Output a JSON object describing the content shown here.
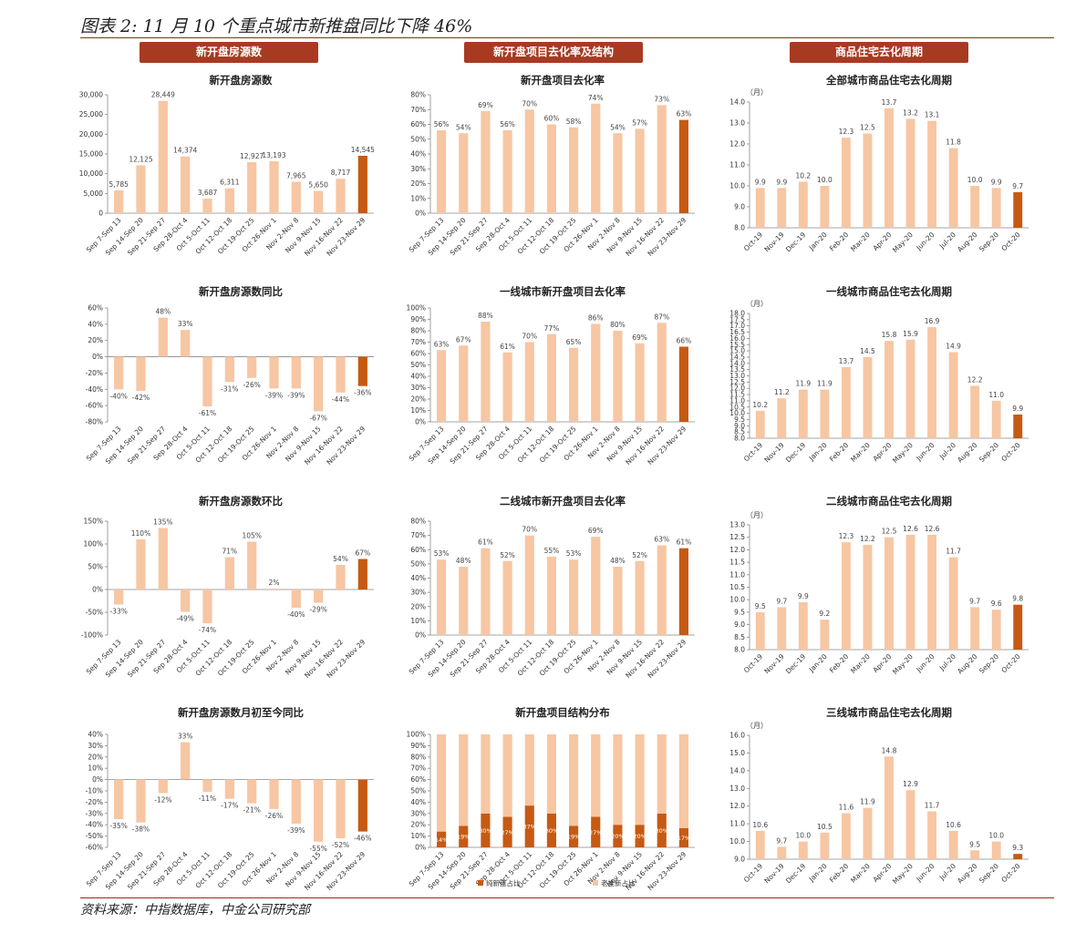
{
  "page": {
    "title": "图表 2: 11 月 10 个重点城市新推盘同比下降 46%",
    "footer": "资料来源：中指数据库，中金公司研究部",
    "column_headers": [
      "新开盘房源数",
      "新开盘项目去化率及结构",
      "商品住宅去化周期"
    ]
  },
  "colors": {
    "light": "#f7c6a3",
    "dark": "#c65a12",
    "header": "#a83a22",
    "axis": "#999999"
  },
  "weekCats": [
    "Sep 7-Sep 13",
    "Sep 14-Sep 20",
    "Sep 21-Sep 27",
    "Sep 28-Oct 4",
    "Oct 5-Oct 11",
    "Oct 12-Oct 18",
    "Oct 19-Oct 25",
    "Oct 26-Nov 1",
    "Nov 2-Nov 8",
    "Nov 9-Nov 15",
    "Nov 16-Nov 22",
    "Nov 23-Nov 29"
  ],
  "monthCats": [
    "Oct-19",
    "Nov-19",
    "Dec-19",
    "Jan-20",
    "Feb-20",
    "Mar-20",
    "Apr-20",
    "May-20",
    "Jun-20",
    "Jul-20",
    "Aug-20",
    "Sep-20",
    "Oct-20"
  ],
  "chart_data": [
    {
      "id": "c0",
      "type": "bar",
      "title": "新开盘房源数",
      "catKey": "weekCats",
      "values": [
        5785,
        12125,
        28449,
        14374,
        3687,
        6311,
        12927,
        13193,
        7965,
        5650,
        8717,
        14545
      ],
      "labels": [
        "5,785",
        "12,125",
        "28,449",
        "14,374",
        "3,687",
        "6,311",
        "12,927",
        "13,193",
        "7,965",
        "5,650",
        "8,717",
        "14,545"
      ],
      "ylim": [
        0,
        30000
      ],
      "ticks": [
        0,
        5000,
        10000,
        15000,
        20000,
        25000,
        30000
      ],
      "tickLabels": [
        "0",
        "5,000",
        "10,000",
        "15,000",
        "20,000",
        "25,000",
        "30,000"
      ]
    },
    {
      "id": "c1",
      "type": "bar",
      "title": "新开盘项目去化率",
      "catKey": "weekCats",
      "values": [
        56,
        54,
        69,
        56,
        70,
        60,
        58,
        74,
        54,
        57,
        73,
        63
      ],
      "labels": [
        "56%",
        "54%",
        "69%",
        "56%",
        "70%",
        "60%",
        "58%",
        "74%",
        "54%",
        "57%",
        "73%",
        "63%"
      ],
      "ylim": [
        0,
        80
      ],
      "ticks": [
        0,
        10,
        20,
        30,
        40,
        50,
        60,
        70,
        80
      ],
      "tickLabels": [
        "0%",
        "10%",
        "20%",
        "30%",
        "40%",
        "50%",
        "60%",
        "70%",
        "80%"
      ]
    },
    {
      "id": "c2",
      "type": "bar",
      "title": "全部城市商品住宅去化周期",
      "catKey": "monthCats",
      "unit": "（月）",
      "values": [
        9.9,
        9.9,
        10.2,
        10.0,
        12.3,
        12.5,
        13.7,
        13.2,
        13.1,
        11.8,
        10.0,
        9.9,
        9.7
      ],
      "labels": [
        "9.9",
        "9.9",
        "10.2",
        "10.0",
        "12.3",
        "12.5",
        "13.7",
        "13.2",
        "13.1",
        "11.8",
        "10.0",
        "9.9",
        "9.7"
      ],
      "ylim": [
        8,
        14
      ],
      "ticks": [
        8,
        9,
        10,
        11,
        12,
        13,
        14
      ],
      "tickLabels": [
        "8.0",
        "9.0",
        "10.0",
        "11.0",
        "12.0",
        "13.0",
        "14.0"
      ]
    },
    {
      "id": "c3",
      "type": "bar",
      "title": "新开盘房源数同比",
      "catKey": "weekCats",
      "values": [
        -40,
        -42,
        48,
        33,
        -61,
        -31,
        -26,
        -39,
        -39,
        -67,
        -44,
        -36
      ],
      "labels": [
        "-40%",
        "-42%",
        "48%",
        "33%",
        "-61%",
        "-31%",
        "-26%",
        "-39%",
        "-39%",
        "-67%",
        "-44%",
        "-36%"
      ],
      "ylim": [
        -80,
        60
      ],
      "ticks": [
        -80,
        -60,
        -40,
        -20,
        0,
        20,
        40,
        60
      ],
      "tickLabels": [
        "-80%",
        "-60%",
        "-40%",
        "-20%",
        "0%",
        "20%",
        "40%",
        "60%"
      ]
    },
    {
      "id": "c4",
      "type": "bar",
      "title": "一线城市新开盘项目去化率",
      "catKey": "weekCats",
      "values": [
        63,
        67,
        88,
        61,
        70,
        77,
        65,
        86,
        80,
        69,
        87,
        66
      ],
      "labels": [
        "63%",
        "67%",
        "88%",
        "61%",
        "70%",
        "77%",
        "65%",
        "86%",
        "80%",
        "69%",
        "87%",
        "66%"
      ],
      "ylim": [
        0,
        100
      ],
      "ticks": [
        0,
        10,
        20,
        30,
        40,
        50,
        60,
        70,
        80,
        90,
        100
      ],
      "tickLabels": [
        "0%",
        "10%",
        "20%",
        "30%",
        "40%",
        "50%",
        "60%",
        "70%",
        "80%",
        "90%",
        "100%"
      ]
    },
    {
      "id": "c5",
      "type": "bar",
      "title": "一线城市商品住宅去化周期",
      "catKey": "monthCats",
      "unit": "（月）",
      "values": [
        10.2,
        11.2,
        11.9,
        11.9,
        13.7,
        14.5,
        15.8,
        15.9,
        16.9,
        14.9,
        12.2,
        11.0,
        9.9
      ],
      "labels": [
        "10.2",
        "11.2",
        "11.9",
        "11.9",
        "13.7",
        "14.5",
        "15.8",
        "15.9",
        "16.9",
        "14.9",
        "12.2",
        "11.0",
        "9.9"
      ],
      "ylim": [
        8,
        18
      ],
      "ticks": [
        8,
        8.5,
        9,
        9.5,
        10,
        10.5,
        11,
        11.5,
        12,
        12.5,
        13,
        13.5,
        14,
        14.5,
        15,
        15.5,
        16,
        16.5,
        17,
        17.5,
        18
      ],
      "tickLabels": [
        "8.0",
        "",
        "9.0",
        "",
        "10.0",
        "",
        "11.0",
        "",
        "12.0",
        "",
        "13.0",
        "",
        "14.0",
        "",
        "15.0",
        "",
        "16.0",
        "",
        "17.0",
        "",
        "18.0"
      ],
      "tickLabelsAll": [
        "8.0",
        "9.0",
        "10.0",
        "11.0",
        "12.0",
        "13.0",
        "14.0",
        "15.0",
        "16.0",
        "17.0",
        "18.0"
      ]
    },
    {
      "id": "c6",
      "type": "bar",
      "title": "新开盘房源数环比",
      "catKey": "weekCats",
      "values": [
        -33,
        110,
        135,
        -49,
        -74,
        71,
        105,
        2,
        -40,
        -29,
        54,
        67
      ],
      "labels": [
        "-33%",
        "110%",
        "135%",
        "-49%",
        "-74%",
        "71%",
        "105%",
        "2%",
        "-40%",
        "-29%",
        "54%",
        "67%"
      ],
      "ylim": [
        -100,
        150
      ],
      "ticks": [
        -100,
        -50,
        0,
        50,
        100,
        150
      ],
      "tickLabels": [
        "-100%",
        "-50%",
        "0%",
        "50%",
        "100%",
        "150%"
      ]
    },
    {
      "id": "c7",
      "type": "bar",
      "title": "二线城市新开盘项目去化率",
      "catKey": "weekCats",
      "values": [
        53,
        48,
        61,
        52,
        70,
        55,
        53,
        69,
        48,
        52,
        63,
        61
      ],
      "labels": [
        "53%",
        "48%",
        "61%",
        "52%",
        "70%",
        "55%",
        "53%",
        "69%",
        "48%",
        "52%",
        "63%",
        "61%"
      ],
      "ylim": [
        0,
        80
      ],
      "ticks": [
        0,
        10,
        20,
        30,
        40,
        50,
        60,
        70,
        80
      ],
      "tickLabels": [
        "0%",
        "10%",
        "20%",
        "30%",
        "40%",
        "50%",
        "60%",
        "70%",
        "80%"
      ]
    },
    {
      "id": "c8",
      "type": "bar",
      "title": "二线城市商品住宅去化周期",
      "catKey": "monthCats",
      "unit": "（月）",
      "values": [
        9.5,
        9.7,
        9.9,
        9.2,
        12.3,
        12.2,
        12.5,
        12.6,
        12.6,
        11.7,
        9.7,
        9.6,
        9.8
      ],
      "labels": [
        "9.5",
        "9.7",
        "9.9",
        "9.2",
        "12.3",
        "12.2",
        "12.5",
        "12.6",
        "12.6",
        "11.7",
        "9.7",
        "9.6",
        "9.8"
      ],
      "ylim": [
        8,
        13
      ],
      "ticks": [
        8,
        8.5,
        9,
        9.5,
        10,
        10.5,
        11,
        11.5,
        12,
        12.5,
        13
      ],
      "tickLabels": [
        "8.0",
        "8.5",
        "9.0",
        "9.5",
        "10.0",
        "10.5",
        "11.0",
        "11.5",
        "12.0",
        "12.5",
        "13.0"
      ]
    },
    {
      "id": "c9",
      "type": "bar",
      "title": "新开盘房源数月初至今同比",
      "catKey": "weekCats",
      "values": [
        -35,
        -38,
        -12,
        33,
        -11,
        -17,
        -21,
        -26,
        -39,
        -55,
        -52,
        -46
      ],
      "labels": [
        "-35%",
        "-38%",
        "-12%",
        "33%",
        "-11%",
        "-17%",
        "-21%",
        "-26%",
        "-39%",
        "-55%",
        "-52%",
        "-46%"
      ],
      "ylim": [
        -60,
        40
      ],
      "ticks": [
        -60,
        -50,
        -40,
        -30,
        -20,
        -10,
        0,
        10,
        20,
        30,
        40
      ],
      "tickLabels": [
        "-60%",
        "-50%",
        "-40%",
        "-30%",
        "-20%",
        "-10%",
        "0%",
        "10%",
        "20%",
        "30%",
        "40%"
      ]
    },
    {
      "id": "c10",
      "type": "stacked",
      "title": "新开盘项目结构分布",
      "catKey": "weekCats",
      "series": [
        {
          "name": "纯新盘占比",
          "values": [
            14,
            19,
            30,
            27,
            37,
            30,
            19,
            27,
            20,
            20,
            30,
            17
          ],
          "labels": [
            "14%",
            "19%",
            "30%",
            "27%",
            "37%",
            "30%",
            "19%",
            "27%",
            "20%",
            "20%",
            "30%",
            "17%"
          ]
        },
        {
          "name": "老推新占比",
          "values": [
            86,
            81,
            70,
            73,
            63,
            70,
            81,
            73,
            80,
            80,
            70,
            83
          ]
        }
      ],
      "ylim": [
        0,
        100
      ],
      "ticks": [
        0,
        10,
        20,
        30,
        40,
        50,
        60,
        70,
        80,
        90,
        100
      ],
      "tickLabels": [
        "0%",
        "10%",
        "20%",
        "30%",
        "40%",
        "50%",
        "60%",
        "70%",
        "80%",
        "90%",
        "100%"
      ]
    },
    {
      "id": "c11",
      "type": "bar",
      "title": "三线城市商品住宅去化周期",
      "catKey": "monthCats",
      "unit": "（月）",
      "values": [
        10.6,
        9.7,
        10.0,
        10.5,
        11.6,
        11.9,
        14.8,
        12.9,
        11.7,
        10.6,
        9.5,
        10.0,
        9.3
      ],
      "labels": [
        "10.6",
        "9.7",
        "10.0",
        "10.5",
        "11.6",
        "11.9",
        "14.8",
        "12.9",
        "11.7",
        "10.6",
        "9.5",
        "10.0",
        "9.3"
      ],
      "ylim": [
        9,
        16
      ],
      "ticks": [
        9,
        10,
        11,
        12,
        13,
        14,
        15,
        16
      ],
      "tickLabels": [
        "9.0",
        "10.0",
        "11.0",
        "12.0",
        "13.0",
        "14.0",
        "15.0",
        "16.0"
      ]
    }
  ]
}
